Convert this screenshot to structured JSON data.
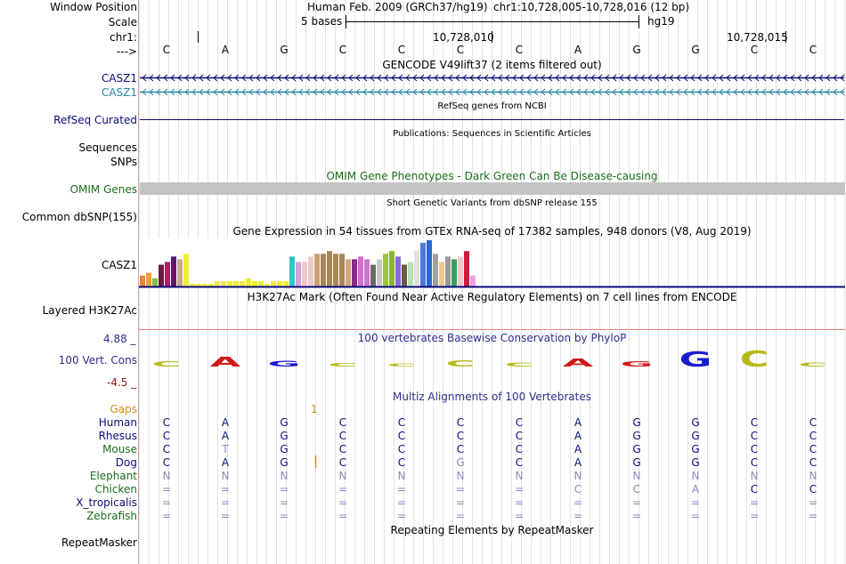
{
  "header": {
    "window_position_label": "Window Position",
    "scale_label": "Scale",
    "chrom_label": "chr1:",
    "strand_label": "--->",
    "assembly": "Human Feb. 2009 (GRCh37/hg19)",
    "position": "chr1:10,728,005-10,728,016 (12 bp)",
    "scale_text": "5 bases",
    "db": "hg19",
    "coord1": "10,728,010",
    "coord2": "10,728,015"
  },
  "sequence": [
    "C",
    "A",
    "G",
    "C",
    "C",
    "C",
    "C",
    "A",
    "G",
    "G",
    "C",
    "C"
  ],
  "tracks": {
    "gencode_title": "GENCODE V49lift37 (2 items filtered out)",
    "casz1_a": "CASZ1",
    "casz1_b": "CASZ1",
    "refseq_title": "RefSeq genes from NCBI",
    "refseq_label": "RefSeq Curated",
    "pubs_title": "Publications: Sequences in Scientific Articles",
    "sequences_label": "Sequences",
    "snps_label": "SNPs",
    "omim_title": "OMIM Gene Phenotypes - Dark Green Can Be Disease-causing",
    "omim_label": "OMIM Genes",
    "dbsnp_title": "Short Genetic Variants from dbSNP release 155",
    "dbsnp_label": "Common dbSNP(155)",
    "gtex_title": "Gene Expression in 54 tissues from GTEx RNA-seq of 17382 samples, 948 donors (V8, Aug 2019)",
    "gtex_label": "CASZ1",
    "h3k_title": "H3K27Ac Mark (Often Found Near Active Regulatory Elements) on 7 cell lines from ENCODE",
    "h3k_label": "Layered H3K27Ac",
    "phylop_title": "100 vertebrates Basewise Conservation by PhyloP",
    "phylop_label": "100 Vert. Cons",
    "phylop_max": "4.88 _",
    "phylop_min": "-4.5 _",
    "multiz_title": "Multiz Alignments of 100 Vertebrates",
    "gaps_label": "Gaps",
    "gaps_value": "1",
    "repeat_title": "Repeating Elements by RepeatMasker",
    "repeat_label": "RepeatMasker"
  },
  "colors": {
    "gencode": "#0c0c78",
    "gencode2": "#2a88aa",
    "omim_green": "#1a6e1a",
    "phylop": "#2d2d8c",
    "phylop_neg": "#8b1a1a",
    "gaps": "#d08a1a",
    "species_green": "#1a6e1a",
    "species_blue": "#0c0c78"
  },
  "gtex_values": [
    4,
    5,
    3,
    8,
    9,
    11,
    10,
    12,
    1,
    1,
    1,
    1,
    2,
    2,
    2,
    2,
    2,
    3,
    2,
    2,
    1,
    2,
    2,
    2,
    11,
    9,
    9,
    11,
    12,
    12,
    13,
    12,
    12,
    10,
    10,
    11,
    10,
    8,
    10,
    12,
    13,
    11,
    8,
    9,
    13,
    16,
    17,
    12,
    9,
    11,
    10,
    11,
    13,
    4
  ],
  "gtex_colors": [
    "#e8863a",
    "#f0a03a",
    "#8ab84a",
    "#6e1a3a",
    "#b0206a",
    "#5a1a6a",
    "#c8a888",
    "#eeee3a",
    "#eeee3a",
    "#eeee3a",
    "#eeee3a",
    "#eeee3a",
    "#eeee3a",
    "#eeee3a",
    "#eeee3a",
    "#eeee3a",
    "#eeee3a",
    "#eeee3a",
    "#eeee3a",
    "#eeee3a",
    "#eeee3a",
    "#eeee3a",
    "#eeee3a",
    "#eeee3a",
    "#2ac8c8",
    "#d8a0d8",
    "#f0c8c8",
    "#f0c8c8",
    "#c8a070",
    "#a88858",
    "#a88858",
    "#a88858",
    "#a88858",
    "#d0a880",
    "#8a2a8a",
    "#d86ad8",
    "#c878c8",
    "#6a6a6a",
    "#c8c8c8",
    "#9ac83a",
    "#8ab82a",
    "#8a6ae0",
    "#6a5a4a",
    "#b8e0b8",
    "#e0e0e0",
    "#4a7ae0",
    "#2a6ad0",
    "#a0a0a0",
    "#f0c890",
    "#9a9a9a",
    "#3aa05a",
    "#f0c8c8",
    "#d01a3a",
    "#f0a0e0"
  ],
  "phylop_values": [
    0.3,
    -0.6,
    0.35,
    0.2,
    0.15,
    0.4,
    0.25,
    -0.5,
    -0.3,
    0.9,
    1.0,
    0.25
  ],
  "multiz": {
    "species": [
      {
        "name": "Human",
        "color": "#0c0c78",
        "bases": [
          "C",
          "A",
          "G",
          "C",
          "C",
          "C",
          "C",
          "A",
          "G",
          "G",
          "C",
          "C"
        ]
      },
      {
        "name": "Rhesus",
        "color": "#0c0c78",
        "bases": [
          "C",
          "A",
          "G",
          "C",
          "C",
          "C",
          "C",
          "A",
          "G",
          "G",
          "C",
          "C"
        ]
      },
      {
        "name": "Mouse",
        "color": "#1a6e1a",
        "bases": [
          "C",
          "T",
          "G",
          "C",
          "C",
          "C",
          "C",
          "A",
          "G",
          "G",
          "C",
          "C"
        ]
      },
      {
        "name": "Dog",
        "color": "#0c0c78",
        "bases": [
          "C",
          "A",
          "G",
          "C",
          "C",
          "G",
          "C",
          "A",
          "G",
          "G",
          "C",
          "C"
        ]
      },
      {
        "name": "Elephant",
        "color": "#1a6e1a",
        "bases": [
          "N",
          "N",
          "N",
          "N",
          "N",
          "N",
          "N",
          "N",
          "N",
          "N",
          "N",
          "N"
        ]
      },
      {
        "name": "Chicken",
        "color": "#1a6e1a",
        "bases": [
          "=",
          "=",
          "=",
          "=",
          "=",
          "=",
          "=",
          "C",
          "C",
          "A",
          "C",
          "C"
        ]
      },
      {
        "name": "X_tropicalis",
        "color": "#0c0c78",
        "bases": [
          "=",
          "=",
          "=",
          "=",
          "=",
          "=",
          "=",
          "=",
          "=",
          "=",
          "=",
          "="
        ]
      },
      {
        "name": "Zebrafish",
        "color": "#1a6e1a",
        "bases": [
          "=",
          "=",
          "=",
          "=",
          "=",
          "=",
          "=",
          "=",
          "=",
          "=",
          "=",
          "="
        ]
      }
    ]
  }
}
